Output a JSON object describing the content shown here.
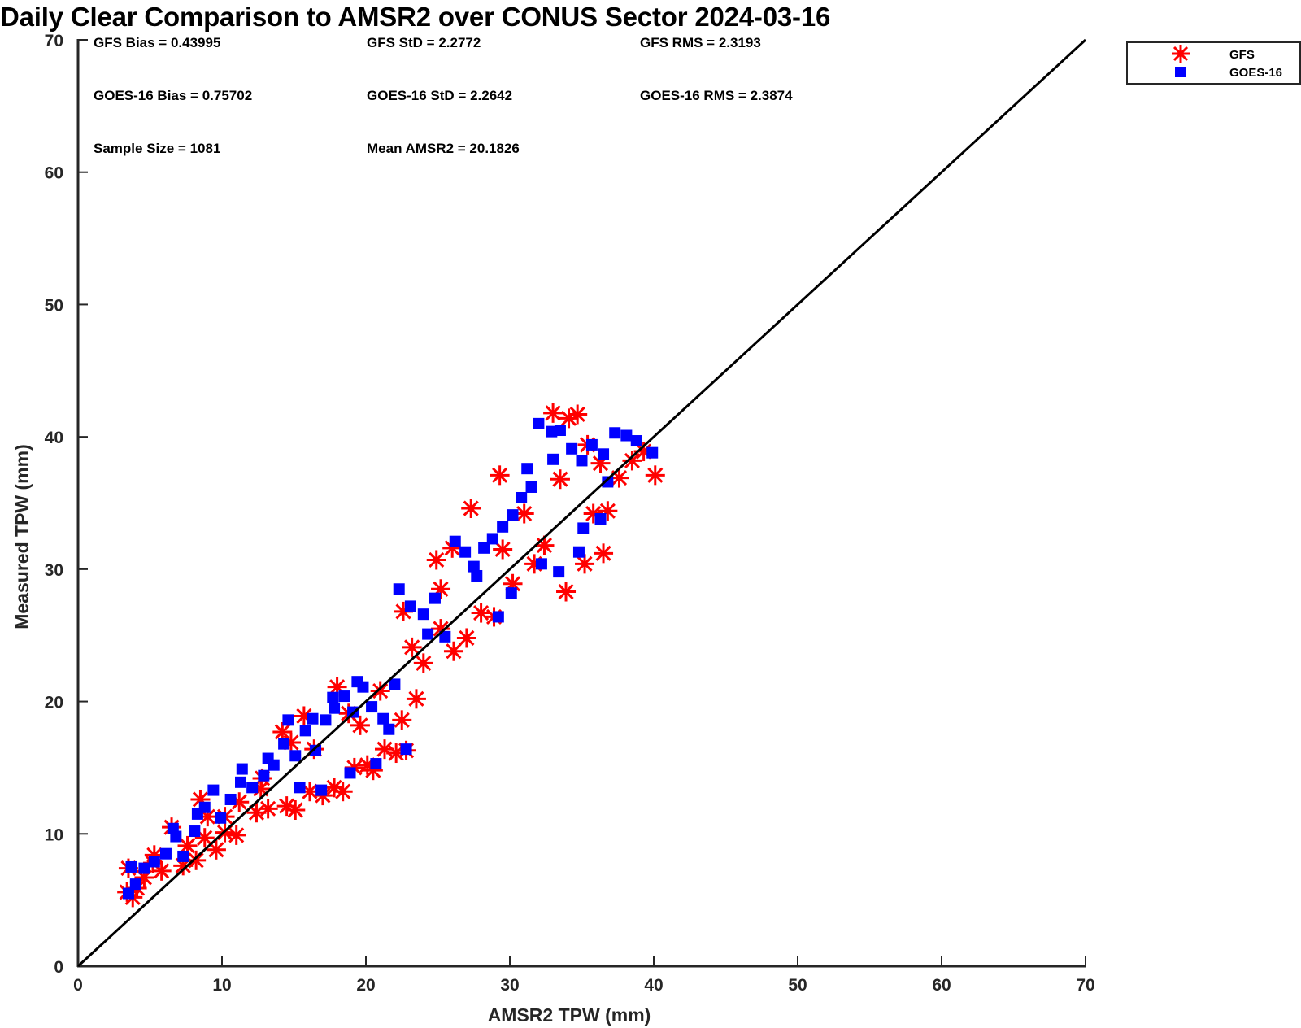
{
  "chart_data": {
    "type": "scatter",
    "title": "Daily Clear Comparison to AMSR2 over CONUS Sector 2024-03-16",
    "xlabel": "AMSR2 TPW (mm)",
    "ylabel": "Measured TPW (mm)",
    "xlim": [
      0,
      70
    ],
    "ylim": [
      0,
      70
    ],
    "xticks": [
      "0",
      "10",
      "20",
      "30",
      "40",
      "50",
      "60",
      "70"
    ],
    "yticks": [
      "0",
      "10",
      "20",
      "30",
      "40",
      "50",
      "60",
      "70"
    ],
    "grid": false,
    "legend_position": "outside-top-right",
    "reference_line": {
      "name": "1:1 line",
      "from": [
        0,
        0
      ],
      "to": [
        70,
        70
      ],
      "color": "#000000"
    },
    "stats": {
      "gfs_bias": "GFS Bias = 0.43995",
      "gfs_std": "GFS StD = 2.2772",
      "gfs_rms": "GFS RMS = 2.3193",
      "goes_bias": "GOES-16 Bias = 0.75702",
      "goes_std": "GOES-16 StD = 2.2642",
      "goes_rms": "GOES-16 RMS = 2.3874",
      "sample_size": "Sample Size = 1081",
      "mean_amsr2": "Mean AMSR2 = 20.1826"
    },
    "series": [
      {
        "name": "GFS",
        "marker": "asterisk",
        "color": "#ff0000",
        "points": [
          [
            3.4,
            5.6
          ],
          [
            3.8,
            5.2
          ],
          [
            4.1,
            5.9
          ],
          [
            3.5,
            7.4
          ],
          [
            4.6,
            6.7
          ],
          [
            5.2,
            7.8
          ],
          [
            5.8,
            7.2
          ],
          [
            6.5,
            10.5
          ],
          [
            7.3,
            7.6
          ],
          [
            8.2,
            8.0
          ],
          [
            8.8,
            9.7
          ],
          [
            9.6,
            8.8
          ],
          [
            9.0,
            11.3
          ],
          [
            8.5,
            12.6
          ],
          [
            10.2,
            10.1
          ],
          [
            11.0,
            9.9
          ],
          [
            11.2,
            12.4
          ],
          [
            12.4,
            11.6
          ],
          [
            13.2,
            11.9
          ],
          [
            12.8,
            14.2
          ],
          [
            14.5,
            12.1
          ],
          [
            15.1,
            11.8
          ],
          [
            14.2,
            17.7
          ],
          [
            15.7,
            18.9
          ],
          [
            16.1,
            13.2
          ],
          [
            17.0,
            12.9
          ],
          [
            17.8,
            13.5
          ],
          [
            18.4,
            13.2
          ],
          [
            18.0,
            21.1
          ],
          [
            19.2,
            15.0
          ],
          [
            20.5,
            14.8
          ],
          [
            21.3,
            16.4
          ],
          [
            22.1,
            16.1
          ],
          [
            22.8,
            16.3
          ],
          [
            22.5,
            18.6
          ],
          [
            23.5,
            20.2
          ],
          [
            22.6,
            26.8
          ],
          [
            23.2,
            24.1
          ],
          [
            24.0,
            22.9
          ],
          [
            25.2,
            25.5
          ],
          [
            26.1,
            23.8
          ],
          [
            27.0,
            24.8
          ],
          [
            28.0,
            26.7
          ],
          [
            28.9,
            26.4
          ],
          [
            30.2,
            28.9
          ],
          [
            29.5,
            31.5
          ],
          [
            31.7,
            30.4
          ],
          [
            33.0,
            41.8
          ],
          [
            34.1,
            41.4
          ],
          [
            34.7,
            41.7
          ],
          [
            33.9,
            28.3
          ],
          [
            35.2,
            30.4
          ],
          [
            36.5,
            31.2
          ],
          [
            35.8,
            34.2
          ],
          [
            36.8,
            34.4
          ],
          [
            37.6,
            36.9
          ],
          [
            38.5,
            38.2
          ],
          [
            39.3,
            38.9
          ],
          [
            40.1,
            37.1
          ],
          [
            35.4,
            39.4
          ],
          [
            36.3,
            38.0
          ],
          [
            33.5,
            36.8
          ],
          [
            29.3,
            37.1
          ],
          [
            26.0,
            31.6
          ],
          [
            27.3,
            34.6
          ],
          [
            25.2,
            28.5
          ],
          [
            19.6,
            18.2
          ],
          [
            20.1,
            15.2
          ],
          [
            16.4,
            16.4
          ],
          [
            12.7,
            13.4
          ],
          [
            10.2,
            11.3
          ],
          [
            7.6,
            9.1
          ],
          [
            5.3,
            8.4
          ],
          [
            24.9,
            30.7
          ],
          [
            31.0,
            34.2
          ],
          [
            32.4,
            31.8
          ],
          [
            21.0,
            20.8
          ],
          [
            18.8,
            19.1
          ],
          [
            14.8,
            16.9
          ]
        ]
      },
      {
        "name": "GOES-16",
        "marker": "square",
        "color": "#0000ff",
        "points": [
          [
            3.5,
            5.5
          ],
          [
            4.0,
            6.2
          ],
          [
            4.6,
            7.4
          ],
          [
            5.3,
            7.9
          ],
          [
            6.1,
            8.5
          ],
          [
            6.8,
            9.8
          ],
          [
            7.3,
            8.3
          ],
          [
            8.1,
            10.2
          ],
          [
            8.8,
            12.0
          ],
          [
            9.4,
            13.3
          ],
          [
            9.9,
            11.2
          ],
          [
            10.6,
            12.6
          ],
          [
            11.3,
            13.9
          ],
          [
            12.1,
            13.5
          ],
          [
            12.9,
            14.4
          ],
          [
            13.6,
            15.2
          ],
          [
            14.3,
            16.8
          ],
          [
            15.1,
            15.9
          ],
          [
            15.8,
            17.8
          ],
          [
            16.5,
            16.3
          ],
          [
            17.2,
            18.6
          ],
          [
            17.8,
            19.5
          ],
          [
            18.5,
            20.4
          ],
          [
            19.1,
            19.2
          ],
          [
            19.8,
            21.1
          ],
          [
            20.4,
            19.6
          ],
          [
            21.2,
            18.7
          ],
          [
            22.0,
            21.3
          ],
          [
            22.3,
            28.5
          ],
          [
            23.1,
            27.2
          ],
          [
            24.0,
            26.6
          ],
          [
            24.8,
            27.8
          ],
          [
            25.5,
            24.9
          ],
          [
            26.2,
            32.1
          ],
          [
            26.9,
            31.3
          ],
          [
            27.5,
            30.2
          ],
          [
            28.2,
            31.6
          ],
          [
            28.8,
            32.3
          ],
          [
            29.5,
            33.2
          ],
          [
            30.2,
            34.1
          ],
          [
            30.8,
            35.4
          ],
          [
            31.5,
            36.2
          ],
          [
            32.0,
            41.0
          ],
          [
            32.9,
            40.4
          ],
          [
            33.5,
            40.5
          ],
          [
            34.3,
            39.1
          ],
          [
            35.0,
            38.2
          ],
          [
            35.7,
            39.4
          ],
          [
            36.5,
            38.7
          ],
          [
            37.3,
            40.3
          ],
          [
            38.1,
            40.1
          ],
          [
            38.8,
            39.7
          ],
          [
            39.9,
            38.8
          ],
          [
            35.1,
            33.1
          ],
          [
            36.3,
            33.8
          ],
          [
            34.8,
            31.3
          ],
          [
            33.4,
            29.8
          ],
          [
            32.2,
            30.4
          ],
          [
            30.1,
            28.2
          ],
          [
            29.2,
            26.4
          ],
          [
            22.8,
            16.4
          ],
          [
            21.6,
            17.9
          ],
          [
            20.7,
            15.3
          ],
          [
            18.9,
            14.6
          ],
          [
            16.9,
            13.3
          ],
          [
            15.4,
            13.5
          ],
          [
            14.6,
            18.6
          ],
          [
            16.3,
            18.7
          ],
          [
            17.7,
            20.3
          ],
          [
            19.4,
            21.5
          ],
          [
            11.4,
            14.9
          ],
          [
            13.2,
            15.7
          ],
          [
            8.3,
            11.5
          ],
          [
            6.6,
            10.4
          ],
          [
            3.7,
            7.5
          ],
          [
            24.3,
            25.1
          ],
          [
            27.7,
            29.5
          ],
          [
            31.2,
            37.6
          ],
          [
            33.0,
            38.3
          ],
          [
            36.8,
            36.6
          ]
        ]
      }
    ]
  }
}
